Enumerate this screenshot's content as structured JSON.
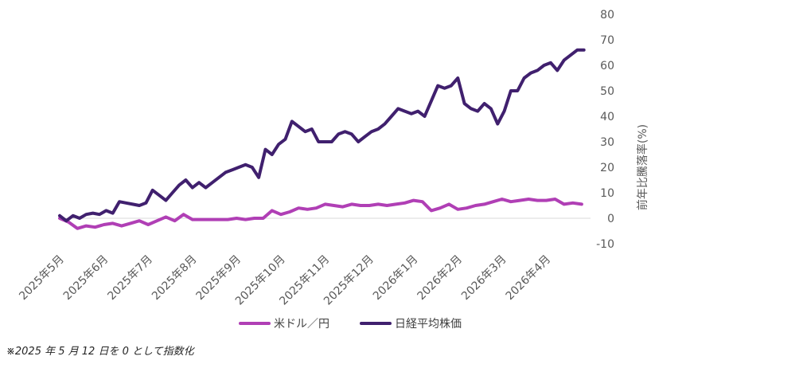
{
  "chart_data": {
    "type": "line",
    "title": "",
    "xlabel": "",
    "ylabel": "前年比騰落率(%)",
    "ylim": [
      -10,
      80
    ],
    "yticks": [
      -10,
      0,
      10,
      20,
      30,
      40,
      50,
      60,
      70,
      80
    ],
    "ytick_labels": [
      "-10",
      "0",
      "10",
      "20",
      "30",
      "40",
      "50",
      "60",
      "70",
      "80"
    ],
    "categories": [
      "2025年5月",
      "2025年6月",
      "2025年7月",
      "2025年8月",
      "2025年9月",
      "2025年10月",
      "2025年11月",
      "2025年12月",
      "2026年1月",
      "2026年2月",
      "2026年3月",
      "2026年4月"
    ],
    "y_axis_position": "right",
    "grid": false,
    "legend": "bottom",
    "series": [
      {
        "name": "米ドル／円",
        "color": "#b03fb5",
        "x": [
          0,
          0.2,
          0.4,
          0.6,
          0.8,
          1.0,
          1.2,
          1.4,
          1.6,
          1.8,
          2.0,
          2.2,
          2.4,
          2.6,
          2.8,
          3.0,
          3.2,
          3.4,
          3.6,
          3.8,
          4.0,
          4.2,
          4.4,
          4.6,
          4.8,
          5.0,
          5.2,
          5.4,
          5.6,
          5.8,
          6.0,
          6.2,
          6.4,
          6.6,
          6.8,
          7.0,
          7.2,
          7.4,
          7.6,
          7.8,
          8.0,
          8.2,
          8.4,
          8.6,
          8.8,
          9.0,
          9.2,
          9.4,
          9.6,
          9.8,
          10.0,
          10.2,
          10.4,
          10.6,
          10.8,
          11.0,
          11.2,
          11.4,
          11.6,
          11.8
        ],
        "values": [
          0,
          -1.5,
          -4,
          -3,
          -3.5,
          -2.5,
          -2,
          -3,
          -2,
          -1,
          -2.5,
          -1,
          0.5,
          -1,
          1.5,
          -0.5,
          -0.5,
          -0.5,
          -0.5,
          -0.5,
          0,
          -0.5,
          0,
          0,
          3,
          1.5,
          2.5,
          4,
          3.5,
          4,
          5.5,
          5,
          4.5,
          5.5,
          5,
          5,
          5.5,
          5,
          5.5,
          6,
          7,
          6.5,
          3,
          4,
          5.5,
          3.5,
          4,
          5,
          5.5,
          6.5,
          7.5,
          6.5,
          7,
          7.5,
          7,
          7,
          7.5,
          5.5,
          6,
          5.5
        ]
      },
      {
        "name": "日経平均株価",
        "color": "#40206e",
        "x": [
          0,
          0.15,
          0.3,
          0.45,
          0.6,
          0.75,
          0.9,
          1.05,
          1.2,
          1.35,
          1.5,
          1.65,
          1.8,
          1.95,
          2.1,
          2.25,
          2.4,
          2.55,
          2.7,
          2.85,
          3.0,
          3.15,
          3.3,
          3.45,
          3.6,
          3.75,
          3.9,
          4.05,
          4.2,
          4.35,
          4.5,
          4.65,
          4.8,
          4.95,
          5.1,
          5.25,
          5.4,
          5.55,
          5.7,
          5.85,
          6.0,
          6.15,
          6.3,
          6.45,
          6.6,
          6.75,
          6.9,
          7.05,
          7.2,
          7.35,
          7.5,
          7.65,
          7.8,
          7.95,
          8.1,
          8.25,
          8.4,
          8.55,
          8.7,
          8.85,
          9.0,
          9.15,
          9.3,
          9.45,
          9.6,
          9.75,
          9.9,
          10.05,
          10.2,
          10.35,
          10.5,
          10.65,
          10.8,
          10.95,
          11.1,
          11.25,
          11.4,
          11.55,
          11.7,
          11.85
        ],
        "values": [
          1,
          -1,
          1,
          0,
          1.5,
          2,
          1.5,
          3,
          2,
          6.5,
          6,
          5.5,
          5,
          6,
          11,
          9,
          7,
          10,
          13,
          15,
          12,
          14,
          12,
          14,
          16,
          18,
          19,
          20,
          21,
          20,
          16,
          27,
          25,
          29,
          31,
          38,
          36,
          34,
          35,
          30,
          30,
          30,
          33,
          34,
          33,
          30,
          32,
          34,
          35,
          37,
          40,
          43,
          42,
          41,
          42,
          40,
          46,
          52,
          51,
          52,
          55,
          45,
          43,
          42,
          45,
          43,
          37,
          42,
          50,
          50,
          55,
          57,
          58,
          60,
          61,
          58,
          62,
          64,
          66,
          66
        ]
      }
    ]
  },
  "legend_items": [
    {
      "label": "米ドル／円",
      "color": "#b03fb5"
    },
    {
      "label": "日経平均株価",
      "color": "#40206e"
    }
  ],
  "footnote": "※2025 年 5 月 12 日を 0 として指数化"
}
